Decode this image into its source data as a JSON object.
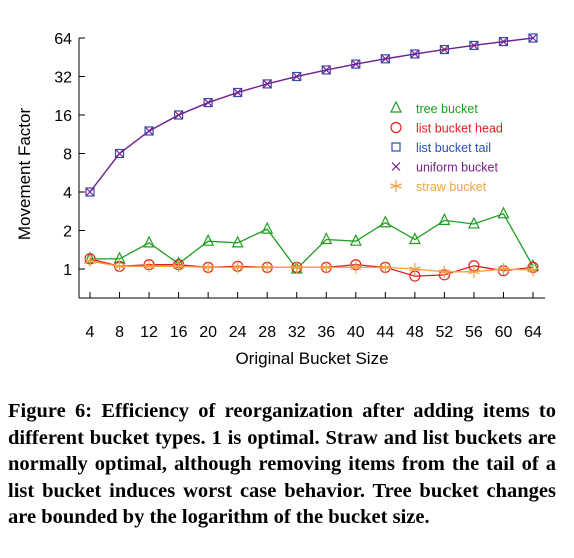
{
  "figure": {
    "caption": "Figure 6: Efficiency of reorganization after adding items to different bucket types.  1 is optimal.  Straw and list buckets are normally optimal, although removing items from the tail of a list bucket induces worst case behavior. Tree bucket changes are bounded by the logarithm of the bucket size."
  },
  "chart_data": {
    "type": "line",
    "xlabel": "Original Bucket Size",
    "ylabel": "Movement Factor",
    "x": [
      4,
      8,
      12,
      16,
      20,
      24,
      28,
      32,
      36,
      40,
      44,
      48,
      52,
      56,
      60,
      64
    ],
    "x_ticks": [
      "4",
      "8",
      "12",
      "16",
      "20",
      "24",
      "28",
      "32",
      "36",
      "40",
      "44",
      "48",
      "52",
      "56",
      "60",
      "64"
    ],
    "y_scale": "log2",
    "y_ticks": [
      1,
      2,
      4,
      8,
      16,
      32,
      64
    ],
    "y_tick_labels": [
      "1",
      "2",
      "4",
      "8",
      "16",
      "32",
      "64"
    ],
    "xlim": [
      4,
      64
    ],
    "ylim": [
      0.62,
      64
    ],
    "grid": false,
    "legend_position": "top-right",
    "series": [
      {
        "name": "tree bucket",
        "marker": "triangle",
        "color": "#1f9e1f",
        "values": [
          1.2,
          1.2,
          1.6,
          1.1,
          1.65,
          1.6,
          2.05,
          1.0,
          1.7,
          1.65,
          2.3,
          1.7,
          2.4,
          2.25,
          2.7,
          1.05
        ]
      },
      {
        "name": "list bucket head",
        "marker": "circle",
        "color": "#e02020",
        "values": [
          1.2,
          1.05,
          1.08,
          1.08,
          1.03,
          1.05,
          1.03,
          1.03,
          1.03,
          1.08,
          1.03,
          0.88,
          0.9,
          1.06,
          0.97,
          1.03
        ]
      },
      {
        "name": "list bucket tail",
        "marker": "square",
        "color": "#2b4fb3",
        "values": [
          4,
          8,
          12,
          16,
          20,
          24,
          28,
          32,
          36,
          40,
          44,
          48,
          52,
          56,
          60,
          64
        ]
      },
      {
        "name": "uniform bucket",
        "marker": "x",
        "color": "#7b1f8f",
        "values": [
          4,
          8,
          12,
          16,
          20,
          24,
          28,
          32,
          36,
          40,
          44,
          48,
          52,
          56,
          60,
          64
        ]
      },
      {
        "name": "straw bucket",
        "marker": "star",
        "color": "#f5a142",
        "values": [
          1.15,
          1.05,
          1.05,
          1.05,
          1.03,
          1.03,
          1.03,
          1.03,
          1.03,
          1.03,
          1.03,
          1.0,
          0.95,
          0.95,
          1.0,
          0.98
        ]
      }
    ]
  }
}
